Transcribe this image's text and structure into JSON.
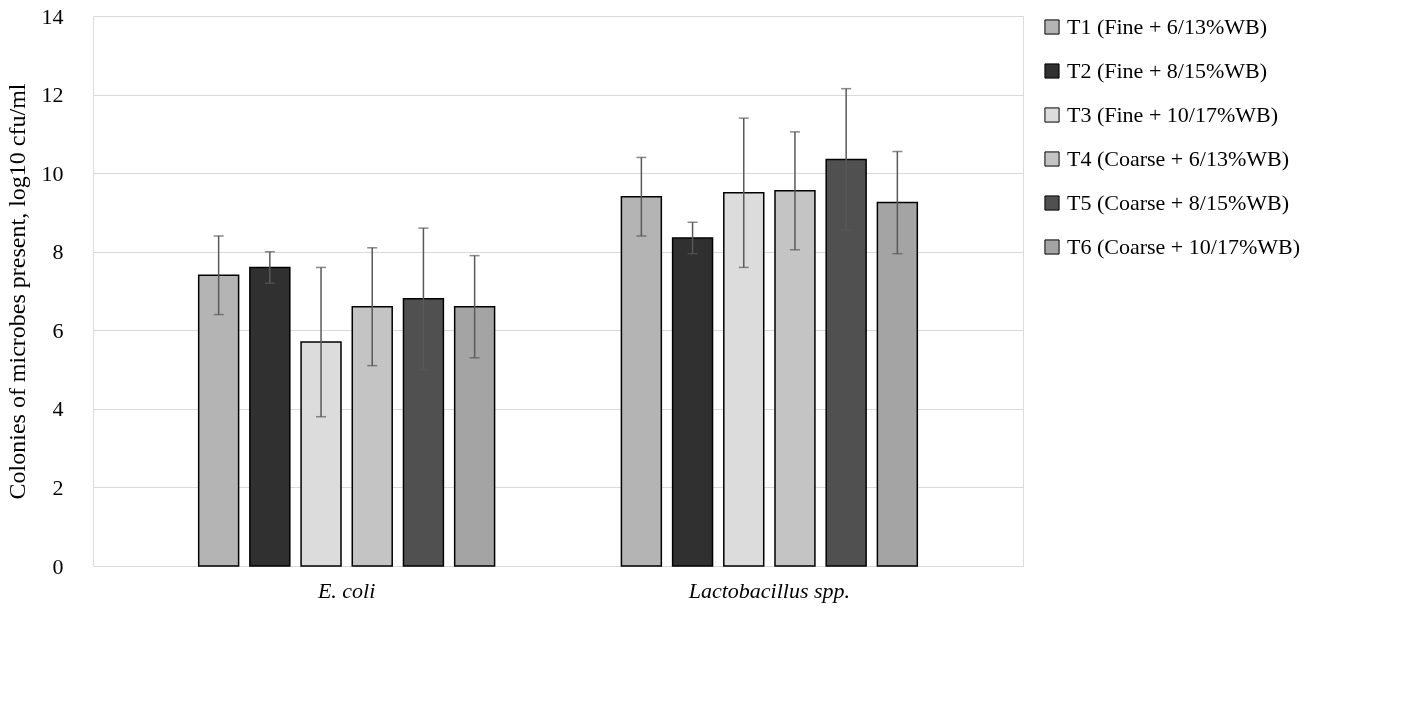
{
  "chart_data": {
    "type": "bar",
    "ylabel": "Colonies of microbes present, log10 cfu/ml",
    "categories": [
      "E. coli",
      "Lactobacillus spp."
    ],
    "series": [
      {
        "name": "T1 (Fine + 6/13%WB)",
        "color": "#b4b4b4",
        "values": [
          7.4,
          9.4
        ],
        "errors": [
          1.0,
          1.0
        ]
      },
      {
        "name": "T2 (Fine + 8/15%WB)",
        "color": "#303030",
        "values": [
          7.6,
          8.35
        ],
        "errors": [
          0.4,
          0.4
        ]
      },
      {
        "name": "T3 (Fine + 10/17%WB)",
        "color": "#dcdcdc",
        "values": [
          5.7,
          9.5
        ],
        "errors": [
          1.9,
          1.9
        ]
      },
      {
        "name": "T4 (Coarse + 6/13%WB)",
        "color": "#c4c4c4",
        "values": [
          6.6,
          9.55
        ],
        "errors": [
          1.5,
          1.5
        ]
      },
      {
        "name": "T5 (Coarse + 8/15%WB)",
        "color": "#505050",
        "values": [
          6.8,
          10.35
        ],
        "errors": [
          1.8,
          1.8
        ]
      },
      {
        "name": "T6 (Coarse + 10/17%WB)",
        "color": "#a4a4a4",
        "values": [
          6.6,
          9.25
        ],
        "errors": [
          1.3,
          1.3
        ]
      }
    ],
    "ylim": [
      0,
      14
    ],
    "yticks": [
      0,
      2,
      4,
      6,
      8,
      10,
      12,
      14
    ],
    "grid": "y",
    "legend": "right"
  }
}
